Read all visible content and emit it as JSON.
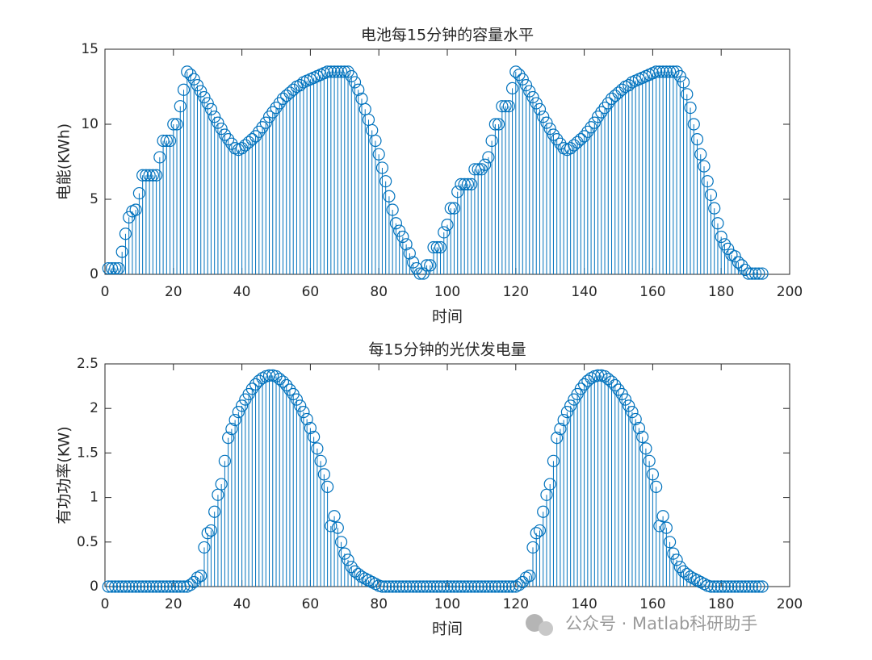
{
  "chart_data": [
    {
      "type": "stem",
      "title": "电池每15分钟的容量水平",
      "xlabel": "时间",
      "ylabel": "电能(KWh)",
      "color": "#0072bd",
      "xlim": [
        0,
        200
      ],
      "xticks": [
        0,
        20,
        40,
        60,
        80,
        100,
        120,
        140,
        160,
        180,
        200
      ],
      "ylim": [
        0,
        15
      ],
      "yticks": [
        0,
        5,
        10,
        15
      ],
      "x": [
        1,
        2,
        3,
        4,
        5,
        6,
        7,
        8,
        9,
        10,
        11,
        12,
        13,
        14,
        15,
        16,
        17,
        18,
        19,
        20,
        21,
        22,
        23,
        24,
        25,
        26,
        27,
        28,
        29,
        30,
        31,
        32,
        33,
        34,
        35,
        36,
        37,
        38,
        39,
        40,
        41,
        42,
        43,
        44,
        45,
        46,
        47,
        48,
        49,
        50,
        51,
        52,
        53,
        54,
        55,
        56,
        57,
        58,
        59,
        60,
        61,
        62,
        63,
        64,
        65,
        66,
        67,
        68,
        69,
        70,
        71,
        72,
        73,
        74,
        75,
        76,
        77,
        78,
        79,
        80,
        81,
        82,
        83,
        84,
        85,
        86,
        87,
        88,
        89,
        90,
        91,
        92,
        93,
        94,
        95,
        96,
        97,
        98,
        99,
        100,
        101,
        102,
        103,
        104,
        105,
        106,
        107,
        108,
        109,
        110,
        111,
        112,
        113,
        114,
        115,
        116,
        117,
        118,
        119,
        120,
        121,
        122,
        123,
        124,
        125,
        126,
        127,
        128,
        129,
        130,
        131,
        132,
        133,
        134,
        135,
        136,
        137,
        138,
        139,
        140,
        141,
        142,
        143,
        144,
        145,
        146,
        147,
        148,
        149,
        150,
        151,
        152,
        153,
        154,
        155,
        156,
        157,
        158,
        159,
        160,
        161,
        162,
        163,
        164,
        165,
        166,
        167,
        168,
        169,
        170,
        171,
        172,
        173,
        174,
        175,
        176,
        177,
        178,
        179,
        180,
        181,
        182,
        183,
        184,
        185,
        186,
        187,
        188,
        189,
        190,
        191,
        192
      ],
      "values": [
        0.4,
        0.4,
        0.4,
        0.4,
        1.5,
        2.7,
        3.8,
        4.2,
        4.3,
        5.4,
        6.6,
        6.6,
        6.6,
        6.6,
        6.6,
        7.8,
        8.9,
        8.9,
        8.9,
        10.0,
        10.0,
        11.2,
        12.3,
        13.5,
        13.3,
        13.0,
        12.6,
        12.2,
        11.8,
        11.4,
        11.0,
        10.5,
        10.1,
        9.7,
        9.3,
        9.0,
        8.7,
        8.4,
        8.3,
        8.4,
        8.6,
        8.8,
        9.0,
        9.2,
        9.5,
        9.8,
        10.1,
        10.5,
        10.8,
        11.1,
        11.4,
        11.7,
        11.9,
        12.1,
        12.3,
        12.5,
        12.6,
        12.8,
        12.9,
        13.0,
        13.1,
        13.2,
        13.3,
        13.4,
        13.5,
        13.5,
        13.5,
        13.5,
        13.5,
        13.5,
        13.5,
        13.2,
        12.8,
        12.3,
        11.7,
        11.0,
        10.3,
        9.6,
        8.9,
        8.0,
        7.1,
        6.2,
        5.2,
        4.3,
        3.4,
        2.9,
        2.5,
        2.0,
        1.4,
        0.8,
        0.4,
        0.05,
        0.05,
        0.6,
        0.6,
        1.8,
        1.8,
        1.8,
        2.8,
        3.3,
        4.4,
        4.4,
        5.5,
        6.0,
        6.0,
        6.0,
        6.0,
        7.0,
        7.0,
        7.0,
        7.3,
        7.8,
        8.9,
        10.0,
        10.0,
        11.2,
        11.2,
        11.2,
        12.4,
        13.5,
        13.3,
        13.0,
        12.6,
        12.2,
        11.8,
        11.4,
        11.0,
        10.5,
        10.1,
        9.7,
        9.3,
        9.0,
        8.7,
        8.4,
        8.3,
        8.4,
        8.6,
        8.8,
        9.0,
        9.2,
        9.5,
        9.8,
        10.1,
        10.5,
        10.8,
        11.1,
        11.4,
        11.7,
        11.9,
        12.1,
        12.3,
        12.5,
        12.6,
        12.8,
        12.9,
        13.0,
        13.1,
        13.2,
        13.3,
        13.4,
        13.5,
        13.5,
        13.5,
        13.5,
        13.5,
        13.5,
        13.5,
        13.2,
        12.8,
        12.0,
        11.1,
        10.0,
        9.0,
        8.0,
        7.2,
        6.2,
        5.3,
        4.4,
        3.4,
        2.5,
        2.0,
        1.7,
        1.3,
        1.2,
        0.8,
        0.6,
        0.3,
        0.05,
        0.05,
        0.05,
        0.05,
        0.05
      ]
    },
    {
      "type": "stem",
      "title": "每15分钟的光伏发电量",
      "xlabel": "时间",
      "ylabel": "有功功率(KW)",
      "color": "#0072bd",
      "xlim": [
        0,
        200
      ],
      "xticks": [
        0,
        20,
        40,
        60,
        80,
        100,
        120,
        140,
        160,
        180,
        200
      ],
      "ylim": [
        0,
        2.5
      ],
      "yticks": [
        0,
        0.5,
        1,
        1.5,
        2,
        2.5
      ],
      "x": [
        1,
        2,
        3,
        4,
        5,
        6,
        7,
        8,
        9,
        10,
        11,
        12,
        13,
        14,
        15,
        16,
        17,
        18,
        19,
        20,
        21,
        22,
        23,
        24,
        25,
        26,
        27,
        28,
        29,
        30,
        31,
        32,
        33,
        34,
        35,
        36,
        37,
        38,
        39,
        40,
        41,
        42,
        43,
        44,
        45,
        46,
        47,
        48,
        49,
        50,
        51,
        52,
        53,
        54,
        55,
        56,
        57,
        58,
        59,
        60,
        61,
        62,
        63,
        64,
        65,
        66,
        67,
        68,
        69,
        70,
        71,
        72,
        73,
        74,
        75,
        76,
        77,
        78,
        79,
        80,
        81,
        82,
        83,
        84,
        85,
        86,
        87,
        88,
        89,
        90,
        91,
        92,
        93,
        94,
        95,
        96,
        97,
        98,
        99,
        100,
        101,
        102,
        103,
        104,
        105,
        106,
        107,
        108,
        109,
        110,
        111,
        112,
        113,
        114,
        115,
        116,
        117,
        118,
        119,
        120,
        121,
        122,
        123,
        124,
        125,
        126,
        127,
        128,
        129,
        130,
        131,
        132,
        133,
        134,
        135,
        136,
        137,
        138,
        139,
        140,
        141,
        142,
        143,
        144,
        145,
        146,
        147,
        148,
        149,
        150,
        151,
        152,
        153,
        154,
        155,
        156,
        157,
        158,
        159,
        160,
        161,
        162,
        163,
        164,
        165,
        166,
        167,
        168,
        169,
        170,
        171,
        172,
        173,
        174,
        175,
        176,
        177,
        178,
        179,
        180,
        181,
        182,
        183,
        184,
        185,
        186,
        187,
        188,
        189,
        190,
        191,
        192
      ],
      "values": [
        0,
        0,
        0,
        0,
        0,
        0,
        0,
        0,
        0,
        0,
        0,
        0,
        0,
        0,
        0,
        0,
        0,
        0,
        0,
        0,
        0,
        0,
        0,
        0,
        0.02,
        0.05,
        0.1,
        0.12,
        0.44,
        0.6,
        0.63,
        0.84,
        1.03,
        1.15,
        1.41,
        1.67,
        1.77,
        1.87,
        1.96,
        2.03,
        2.1,
        2.16,
        2.22,
        2.27,
        2.31,
        2.34,
        2.36,
        2.37,
        2.37,
        2.36,
        2.33,
        2.3,
        2.26,
        2.21,
        2.16,
        2.1,
        2.03,
        1.96,
        1.88,
        1.78,
        1.68,
        1.55,
        1.41,
        1.26,
        1.12,
        0.68,
        0.79,
        0.66,
        0.5,
        0.37,
        0.3,
        0.22,
        0.17,
        0.14,
        0.11,
        0.09,
        0.07,
        0.05,
        0.03,
        0.01,
        0,
        0,
        0,
        0,
        0,
        0,
        0,
        0,
        0,
        0,
        0,
        0,
        0,
        0,
        0,
        0,
        0,
        0,
        0,
        0,
        0,
        0,
        0,
        0,
        0,
        0,
        0,
        0,
        0,
        0,
        0,
        0,
        0,
        0,
        0,
        0,
        0,
        0,
        0,
        0,
        0.02,
        0.05,
        0.1,
        0.12,
        0.44,
        0.6,
        0.63,
        0.84,
        1.03,
        1.15,
        1.41,
        1.67,
        1.77,
        1.87,
        1.96,
        2.03,
        2.1,
        2.16,
        2.22,
        2.27,
        2.31,
        2.34,
        2.36,
        2.37,
        2.37,
        2.36,
        2.33,
        2.3,
        2.26,
        2.21,
        2.16,
        2.1,
        2.03,
        1.96,
        1.88,
        1.78,
        1.68,
        1.55,
        1.41,
        1.26,
        1.12,
        0.68,
        0.79,
        0.66,
        0.5,
        0.37,
        0.3,
        0.22,
        0.17,
        0.14,
        0.11,
        0.09,
        0.07,
        0.05,
        0.03,
        0.01,
        0,
        0,
        0,
        0,
        0,
        0,
        0,
        0,
        0,
        0,
        0,
        0,
        0,
        0,
        0,
        0
      ]
    }
  ],
  "watermark": "公众号 · Matlab科研助手"
}
